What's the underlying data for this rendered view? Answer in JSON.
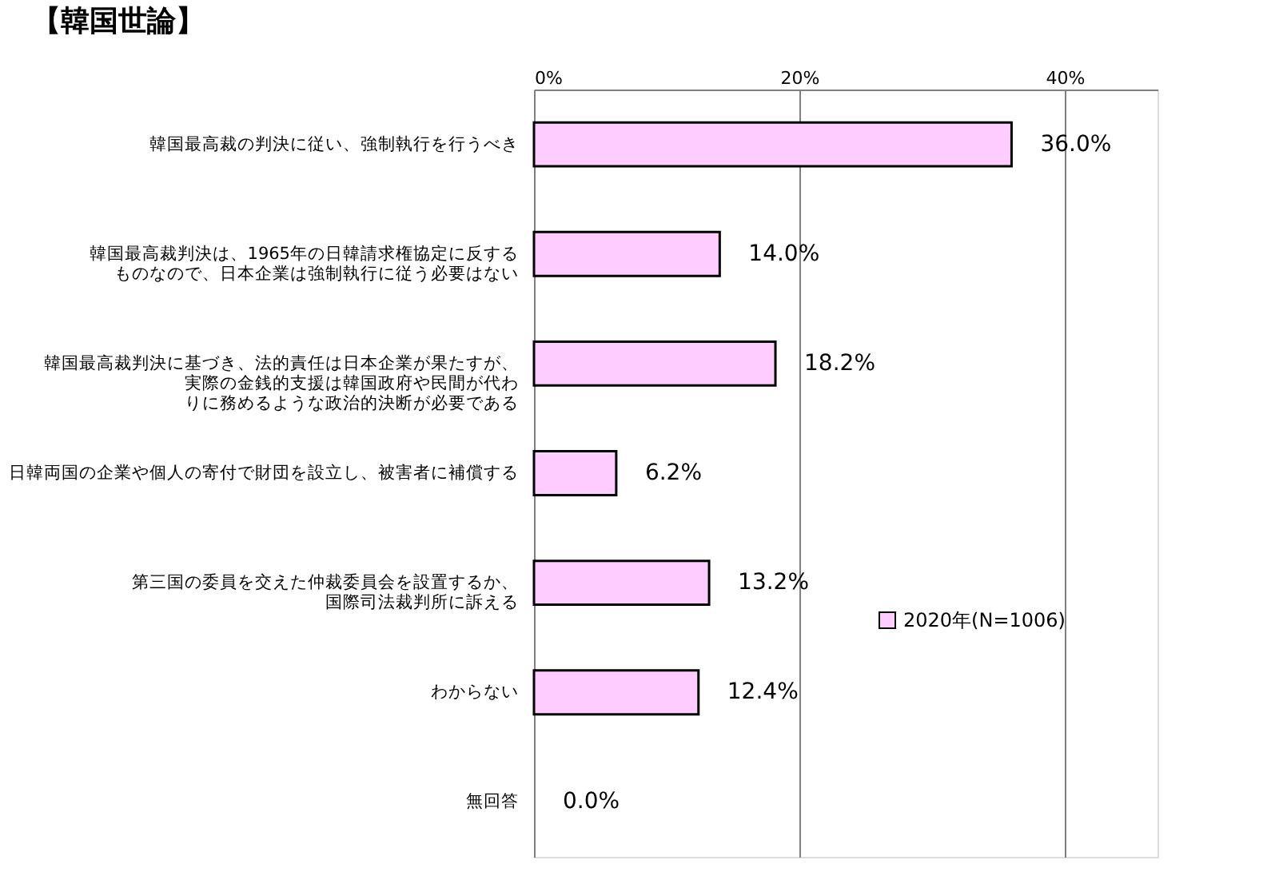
{
  "chart_data": {
    "type": "bar",
    "orientation": "horizontal",
    "title": "【韓国世論】",
    "categories": [
      "韓国最高裁の判決に従い、強制執行を行うべき",
      "韓国最高裁判決は、1965年の日韓請求権協定に反するものなので、日本企業は強制執行に従う必要はない",
      "韓国最高裁判決に基づき、法的責任は日本企業が果たすが、実際の金銭的支援は韓国政府や民間が代わりに務めるような政治的決断が必要である",
      "日韓両国の企業や個人の寄付で財団を設立し、被害者に補償する",
      "第三国の委員を交えた仲裁委員会を設置するか、国際司法裁判所に訴える",
      "わからない",
      "無回答"
    ],
    "series": [
      {
        "name": "2020年(N=1006)",
        "color": "#ffccff",
        "values": [
          36.0,
          14.0,
          18.2,
          6.2,
          13.2,
          12.4,
          0.0
        ],
        "value_labels": [
          "36.0%",
          "14.0%",
          "18.2%",
          "6.2%",
          "13.2%",
          "12.4%",
          "0.0%"
        ]
      }
    ],
    "xlim": [
      0,
      47
    ],
    "xticks": [
      {
        "value": 0,
        "label": "0%"
      },
      {
        "value": 20,
        "label": "20%"
      },
      {
        "value": 40,
        "label": "40%"
      }
    ],
    "grid": "x",
    "legend": "right"
  }
}
